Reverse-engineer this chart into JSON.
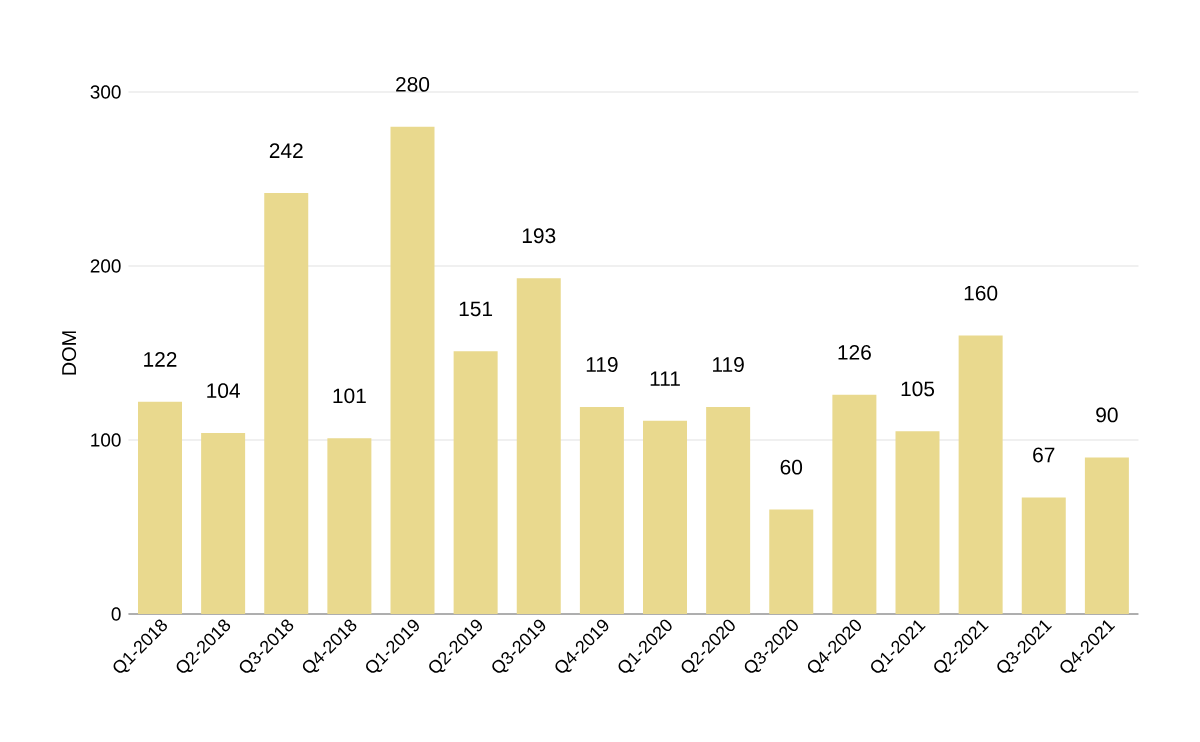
{
  "chart_data": {
    "type": "bar",
    "ylabel": "DOM",
    "categories": [
      "Q1-2018",
      "Q2-2018",
      "Q3-2018",
      "Q4-2018",
      "Q1-2019",
      "Q2-2019",
      "Q3-2019",
      "Q4-2019",
      "Q1-2020",
      "Q2-2020",
      "Q3-2020",
      "Q4-2020",
      "Q1-2021",
      "Q2-2021",
      "Q3-2021",
      "Q4-2021"
    ],
    "values": [
      122,
      104,
      242,
      101,
      280,
      151,
      193,
      119,
      111,
      119,
      60,
      126,
      105,
      160,
      67,
      90
    ],
    "color": "#e9d98e",
    "ylim": [
      0,
      300
    ],
    "yticks": [
      0,
      100,
      200,
      300
    ],
    "grid": "y",
    "data_labels": true
  }
}
